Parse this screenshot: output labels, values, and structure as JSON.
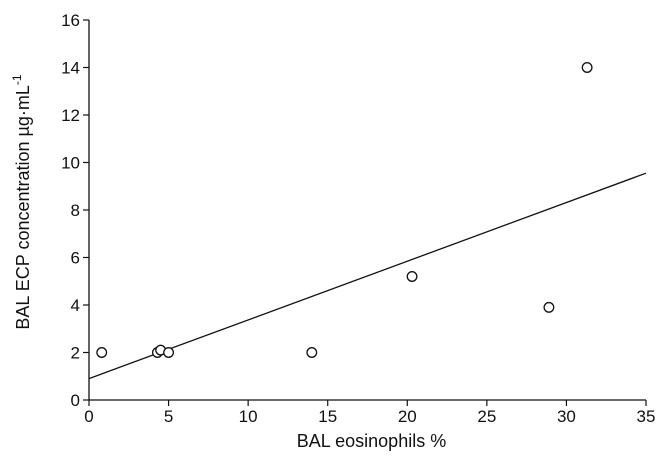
{
  "chart_data": {
    "type": "scatter",
    "title": "",
    "xlabel": "BAL eosinophils %",
    "ylabel": "BAL ECP concentration µg·mL",
    "ylabel_superscript": "-1",
    "xlim": [
      0,
      35
    ],
    "ylim": [
      0,
      16
    ],
    "xticks": [
      0,
      5,
      10,
      15,
      20,
      25,
      30,
      35
    ],
    "yticks": [
      0,
      2,
      4,
      6,
      8,
      10,
      12,
      14,
      16
    ],
    "grid": false,
    "legend": "none",
    "series": [
      {
        "marker": "open-circle",
        "x": [
          0.8,
          4.3,
          4.5,
          5.0,
          14.0,
          20.3,
          28.9,
          31.3
        ],
        "y": [
          2.0,
          2.0,
          2.1,
          2.0,
          2.0,
          5.2,
          3.9,
          14.0
        ]
      }
    ],
    "trendline": {
      "type": "linear",
      "x": [
        0,
        35
      ],
      "y": [
        0.9,
        9.55
      ]
    },
    "colors": {
      "axis": "#111111",
      "marker_stroke": "#111111",
      "marker_fill": "#ffffff",
      "line": "#111111"
    }
  }
}
